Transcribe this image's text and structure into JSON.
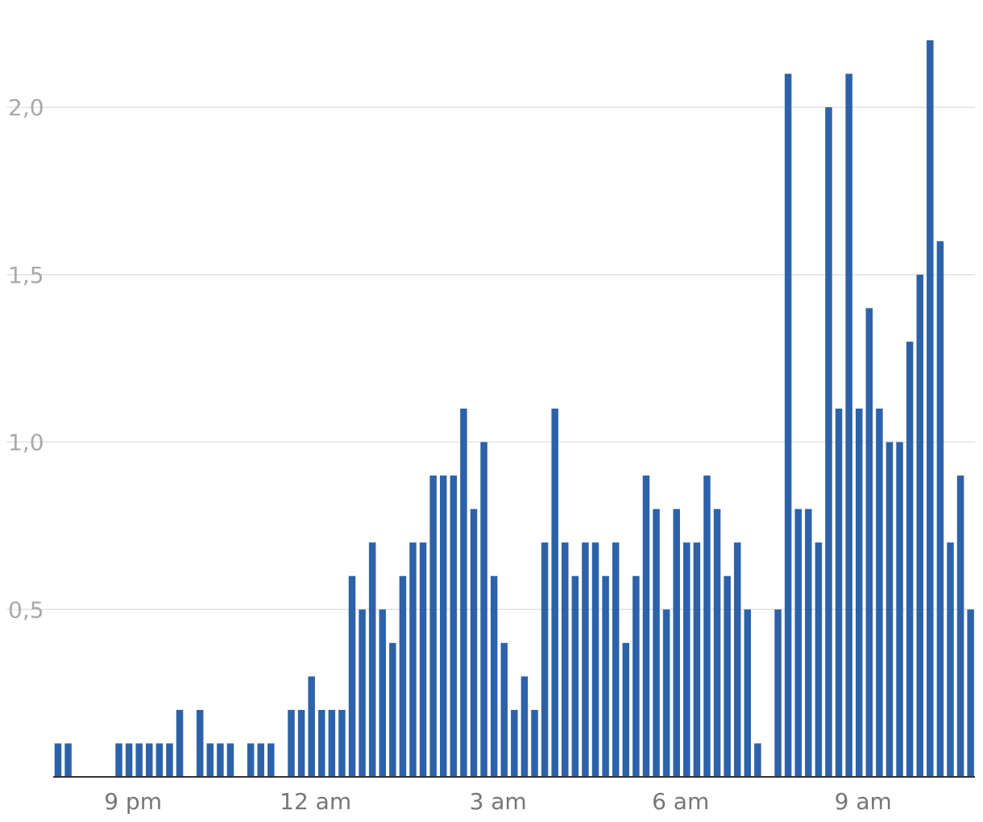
{
  "chart_data": {
    "type": "bar",
    "title": "",
    "xlabel": "",
    "ylabel": "",
    "ylim": [
      0,
      2.2
    ],
    "y_ticks": [
      {
        "value": 0.5,
        "label": "0,5"
      },
      {
        "value": 1.0,
        "label": "1,0"
      },
      {
        "value": 1.5,
        "label": "1,5"
      },
      {
        "value": 2.0,
        "label": "2,0"
      }
    ],
    "x_tick_labels": [
      {
        "index": 7,
        "label": "9 pm"
      },
      {
        "index": 25,
        "label": "12 am"
      },
      {
        "index": 43,
        "label": "3 am"
      },
      {
        "index": 61,
        "label": "6 am"
      },
      {
        "index": 79,
        "label": "9 am"
      }
    ],
    "grid": true,
    "legend": "none",
    "color": "#2d62aa",
    "values": [
      0.1,
      0.1,
      0,
      0,
      0,
      0,
      0.1,
      0.1,
      0.1,
      0.1,
      0.1,
      0.1,
      0.2,
      0,
      0.2,
      0.1,
      0.1,
      0.1,
      0,
      0.1,
      0.1,
      0.1,
      0,
      0.2,
      0.2,
      0.3,
      0.2,
      0.2,
      0.2,
      0.6,
      0.5,
      0.7,
      0.5,
      0.4,
      0.6,
      0.7,
      0.7,
      0.9,
      0.9,
      0.9,
      1.1,
      0.8,
      1.0,
      0.6,
      0.4,
      0.2,
      0.3,
      0.2,
      0.7,
      1.1,
      0.7,
      0.6,
      0.7,
      0.7,
      0.6,
      0.7,
      0.4,
      0.6,
      0.9,
      0.8,
      0.5,
      0.8,
      0.7,
      0.7,
      0.9,
      0.8,
      0.6,
      0.7,
      0.5,
      0.1,
      0,
      0.5,
      2.1,
      0.8,
      0.8,
      0.7,
      2.0,
      1.1,
      2.1,
      1.1,
      1.4,
      1.1,
      1.0,
      1.0,
      1.3,
      1.5,
      2.2,
      1.6,
      0.7,
      0.9,
      0.5
    ]
  }
}
